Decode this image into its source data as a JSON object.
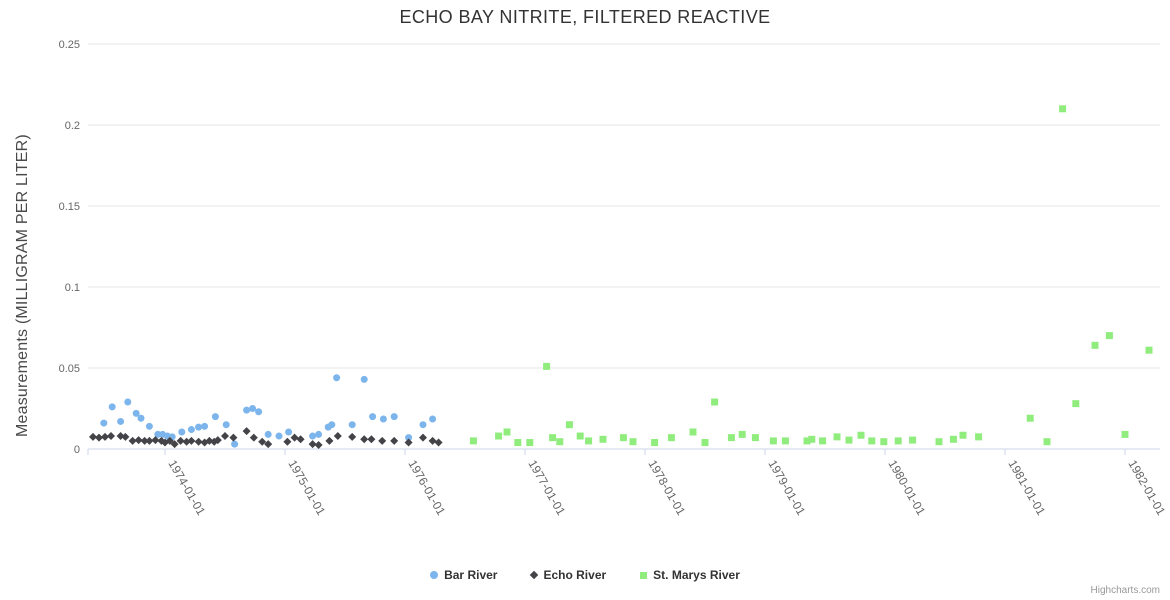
{
  "chart": {
    "credits_label": "Highcharts.com"
  },
  "chart_data": {
    "type": "scatter",
    "title": "ECHO BAY NITRITE, FILTERED REACTIVE",
    "xlabel": "",
    "ylabel": "Measurements (MILLIGRAM PER LITER)",
    "x_unit": "decimal_year",
    "xlim": [
      1973.36,
      1982.29
    ],
    "ylim": [
      0,
      0.25
    ],
    "grid": "horizontal-only",
    "legend_position": "bottom-center",
    "colors": {
      "grid_line": "#e6e6e6",
      "axis_line": "#ccd6eb",
      "tick": "#ccd6eb",
      "axis_label": "#666666",
      "title": "#333333",
      "credits": "#999999"
    },
    "x_ticks": [
      {
        "value": 1974,
        "label": "1974-01-01"
      },
      {
        "value": 1975,
        "label": "1975-01-01"
      },
      {
        "value": 1976,
        "label": "1976-01-01"
      },
      {
        "value": 1977,
        "label": "1977-01-01"
      },
      {
        "value": 1978,
        "label": "1978-01-01"
      },
      {
        "value": 1979,
        "label": "1979-01-01"
      },
      {
        "value": 1980,
        "label": "1980-01-01"
      },
      {
        "value": 1981,
        "label": "1981-01-01"
      },
      {
        "value": 1982,
        "label": "1982-01-01"
      }
    ],
    "y_ticks": [
      {
        "value": 0,
        "label": "0"
      },
      {
        "value": 0.05,
        "label": "0.05"
      },
      {
        "value": 0.1,
        "label": "0.1"
      },
      {
        "value": 0.15,
        "label": "0.15"
      },
      {
        "value": 0.2,
        "label": "0.2"
      },
      {
        "value": 0.25,
        "label": "0.25"
      }
    ],
    "series": [
      {
        "name": "Bar River",
        "color": "#7cb5ec",
        "marker": "circle",
        "points": [
          [
            1973.49,
            0.016
          ],
          [
            1973.56,
            0.026
          ],
          [
            1973.63,
            0.017
          ],
          [
            1973.69,
            0.029
          ],
          [
            1973.76,
            0.022
          ],
          [
            1973.8,
            0.019
          ],
          [
            1973.87,
            0.014
          ],
          [
            1973.94,
            0.009
          ],
          [
            1973.98,
            0.009
          ],
          [
            1974.02,
            0.008
          ],
          [
            1974.06,
            0.0075
          ],
          [
            1974.14,
            0.0105
          ],
          [
            1974.22,
            0.012
          ],
          [
            1974.28,
            0.0135
          ],
          [
            1974.33,
            0.014
          ],
          [
            1974.42,
            0.02
          ],
          [
            1974.51,
            0.015
          ],
          [
            1974.58,
            0.003
          ],
          [
            1974.68,
            0.024
          ],
          [
            1974.73,
            0.025
          ],
          [
            1974.78,
            0.023
          ],
          [
            1974.86,
            0.009
          ],
          [
            1974.95,
            0.008
          ],
          [
            1975.03,
            0.0105
          ],
          [
            1975.23,
            0.008
          ],
          [
            1975.28,
            0.009
          ],
          [
            1975.36,
            0.0135
          ],
          [
            1975.39,
            0.015
          ],
          [
            1975.43,
            0.044
          ],
          [
            1975.56,
            0.015
          ],
          [
            1975.66,
            0.043
          ],
          [
            1975.73,
            0.02
          ],
          [
            1975.82,
            0.0185
          ],
          [
            1975.91,
            0.02
          ],
          [
            1976.03,
            0.007
          ],
          [
            1976.15,
            0.015
          ],
          [
            1976.23,
            0.0185
          ]
        ]
      },
      {
        "name": "Echo River",
        "color": "#434348",
        "marker": "diamond",
        "points": [
          [
            1973.4,
            0.0075
          ],
          [
            1973.45,
            0.007
          ],
          [
            1973.5,
            0.0075
          ],
          [
            1973.55,
            0.008
          ],
          [
            1973.63,
            0.008
          ],
          [
            1973.67,
            0.0075
          ],
          [
            1973.73,
            0.005
          ],
          [
            1973.78,
            0.0055
          ],
          [
            1973.83,
            0.005
          ],
          [
            1973.87,
            0.005
          ],
          [
            1973.92,
            0.0055
          ],
          [
            1973.97,
            0.005
          ],
          [
            1974.0,
            0.004
          ],
          [
            1974.04,
            0.005
          ],
          [
            1974.08,
            0.003
          ],
          [
            1974.13,
            0.005
          ],
          [
            1974.18,
            0.0045
          ],
          [
            1974.22,
            0.005
          ],
          [
            1974.28,
            0.0045
          ],
          [
            1974.33,
            0.004
          ],
          [
            1974.37,
            0.005
          ],
          [
            1974.41,
            0.0045
          ],
          [
            1974.44,
            0.0055
          ],
          [
            1974.5,
            0.008
          ],
          [
            1974.57,
            0.007
          ],
          [
            1974.68,
            0.011
          ],
          [
            1974.74,
            0.007
          ],
          [
            1974.81,
            0.0045
          ],
          [
            1974.86,
            0.003
          ],
          [
            1975.02,
            0.0045
          ],
          [
            1975.08,
            0.007
          ],
          [
            1975.13,
            0.006
          ],
          [
            1975.23,
            0.003
          ],
          [
            1975.28,
            0.0025
          ],
          [
            1975.37,
            0.005
          ],
          [
            1975.44,
            0.008
          ],
          [
            1975.56,
            0.0075
          ],
          [
            1975.66,
            0.006
          ],
          [
            1975.72,
            0.006
          ],
          [
            1975.81,
            0.005
          ],
          [
            1975.91,
            0.005
          ],
          [
            1976.03,
            0.004
          ],
          [
            1976.15,
            0.007
          ],
          [
            1976.23,
            0.005
          ],
          [
            1976.28,
            0.004
          ]
        ]
      },
      {
        "name": "St. Marys River",
        "color": "#90ed7d",
        "marker": "square",
        "points": [
          [
            1976.57,
            0.005
          ],
          [
            1976.78,
            0.008
          ],
          [
            1976.85,
            0.0105
          ],
          [
            1976.94,
            0.004
          ],
          [
            1977.04,
            0.004
          ],
          [
            1977.18,
            0.051
          ],
          [
            1977.23,
            0.007
          ],
          [
            1977.29,
            0.0045
          ],
          [
            1977.37,
            0.015
          ],
          [
            1977.46,
            0.008
          ],
          [
            1977.53,
            0.005
          ],
          [
            1977.65,
            0.006
          ],
          [
            1977.82,
            0.007
          ],
          [
            1977.9,
            0.0045
          ],
          [
            1978.08,
            0.004
          ],
          [
            1978.22,
            0.007
          ],
          [
            1978.4,
            0.0105
          ],
          [
            1978.5,
            0.004
          ],
          [
            1978.58,
            0.029
          ],
          [
            1978.72,
            0.007
          ],
          [
            1978.81,
            0.009
          ],
          [
            1978.92,
            0.007
          ],
          [
            1979.07,
            0.005
          ],
          [
            1979.17,
            0.005
          ],
          [
            1979.35,
            0.005
          ],
          [
            1979.39,
            0.006
          ],
          [
            1979.48,
            0.005
          ],
          [
            1979.6,
            0.0075
          ],
          [
            1979.7,
            0.0055
          ],
          [
            1979.8,
            0.0085
          ],
          [
            1979.89,
            0.005
          ],
          [
            1979.99,
            0.0045
          ],
          [
            1980.11,
            0.005
          ],
          [
            1980.23,
            0.0055
          ],
          [
            1980.45,
            0.0045
          ],
          [
            1980.57,
            0.006
          ],
          [
            1980.65,
            0.0085
          ],
          [
            1980.78,
            0.0075
          ],
          [
            1981.21,
            0.019
          ],
          [
            1981.35,
            0.0045
          ],
          [
            1981.48,
            0.21
          ],
          [
            1981.59,
            0.028
          ],
          [
            1981.75,
            0.064
          ],
          [
            1981.87,
            0.07
          ],
          [
            1982.0,
            0.009
          ],
          [
            1982.2,
            0.061
          ]
        ]
      }
    ]
  }
}
